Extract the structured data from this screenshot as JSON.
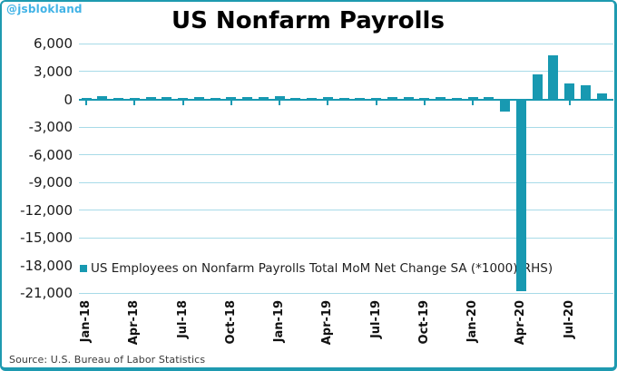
{
  "watermark": "@jsblokland",
  "title": "US Nonfarm Payrolls",
  "source": "Source: U.S. Bureau of Labor Statistics",
  "legend": "US Employees on Nonfarm Payrolls Total MoM Net Change SA (*1000)(RHS)",
  "colors": {
    "bar": "#1899B1",
    "grid": "#A8DBE8",
    "border": "#1E9AB0",
    "watermark": "#41B3E6",
    "title_text": "#000000"
  },
  "chart_data": {
    "type": "bar",
    "title": "US Nonfarm Payrolls",
    "series_name": "US Employees on Nonfarm Payrolls Total MoM Net Change SA (*1000)(RHS)",
    "categories": [
      "Jan-18",
      "Feb-18",
      "Mar-18",
      "Apr-18",
      "May-18",
      "Jun-18",
      "Jul-18",
      "Aug-18",
      "Sep-18",
      "Oct-18",
      "Nov-18",
      "Dec-18",
      "Jan-19",
      "Feb-19",
      "Mar-19",
      "Apr-19",
      "May-19",
      "Jun-19",
      "Jul-19",
      "Aug-19",
      "Sep-19",
      "Oct-19",
      "Nov-19",
      "Dec-19",
      "Jan-20",
      "Feb-20",
      "Mar-20",
      "Apr-20",
      "May-20",
      "Jun-20",
      "Jul-20",
      "Aug-20",
      "Sep-20"
    ],
    "values": [
      176,
      324,
      155,
      175,
      268,
      208,
      178,
      282,
      108,
      277,
      197,
      227,
      312,
      56,
      153,
      216,
      62,
      178,
      166,
      219,
      208,
      185,
      261,
      184,
      214,
      251,
      -1373,
      -20787,
      2725,
      4781,
      1761,
      1489,
      661
    ],
    "ylabel": "",
    "xlabel": "",
    "ylim": [
      -21000,
      6000
    ],
    "grid": true,
    "legend_position": "inside-bottom-left",
    "y_ticks": [
      {
        "value": 6000,
        "label": "6,000"
      },
      {
        "value": 3000,
        "label": "3,000"
      },
      {
        "value": 0,
        "label": "0"
      },
      {
        "value": -3000,
        "label": "-3,000"
      },
      {
        "value": -6000,
        "label": "-6,000"
      },
      {
        "value": -9000,
        "label": "-9,000"
      },
      {
        "value": -12000,
        "label": "-12,000"
      },
      {
        "value": -15000,
        "label": "-15,000"
      },
      {
        "value": -18000,
        "label": "-18,000"
      },
      {
        "value": -21000,
        "label": "-21,000"
      }
    ],
    "x_tick_labels": [
      "Jan-18",
      "Apr-18",
      "Jul-18",
      "Oct-18",
      "Jan-19",
      "Apr-19",
      "Jul-19",
      "Oct-19",
      "Jan-20",
      "Apr-20",
      "Jul-20"
    ],
    "x_tick_every": 3
  }
}
